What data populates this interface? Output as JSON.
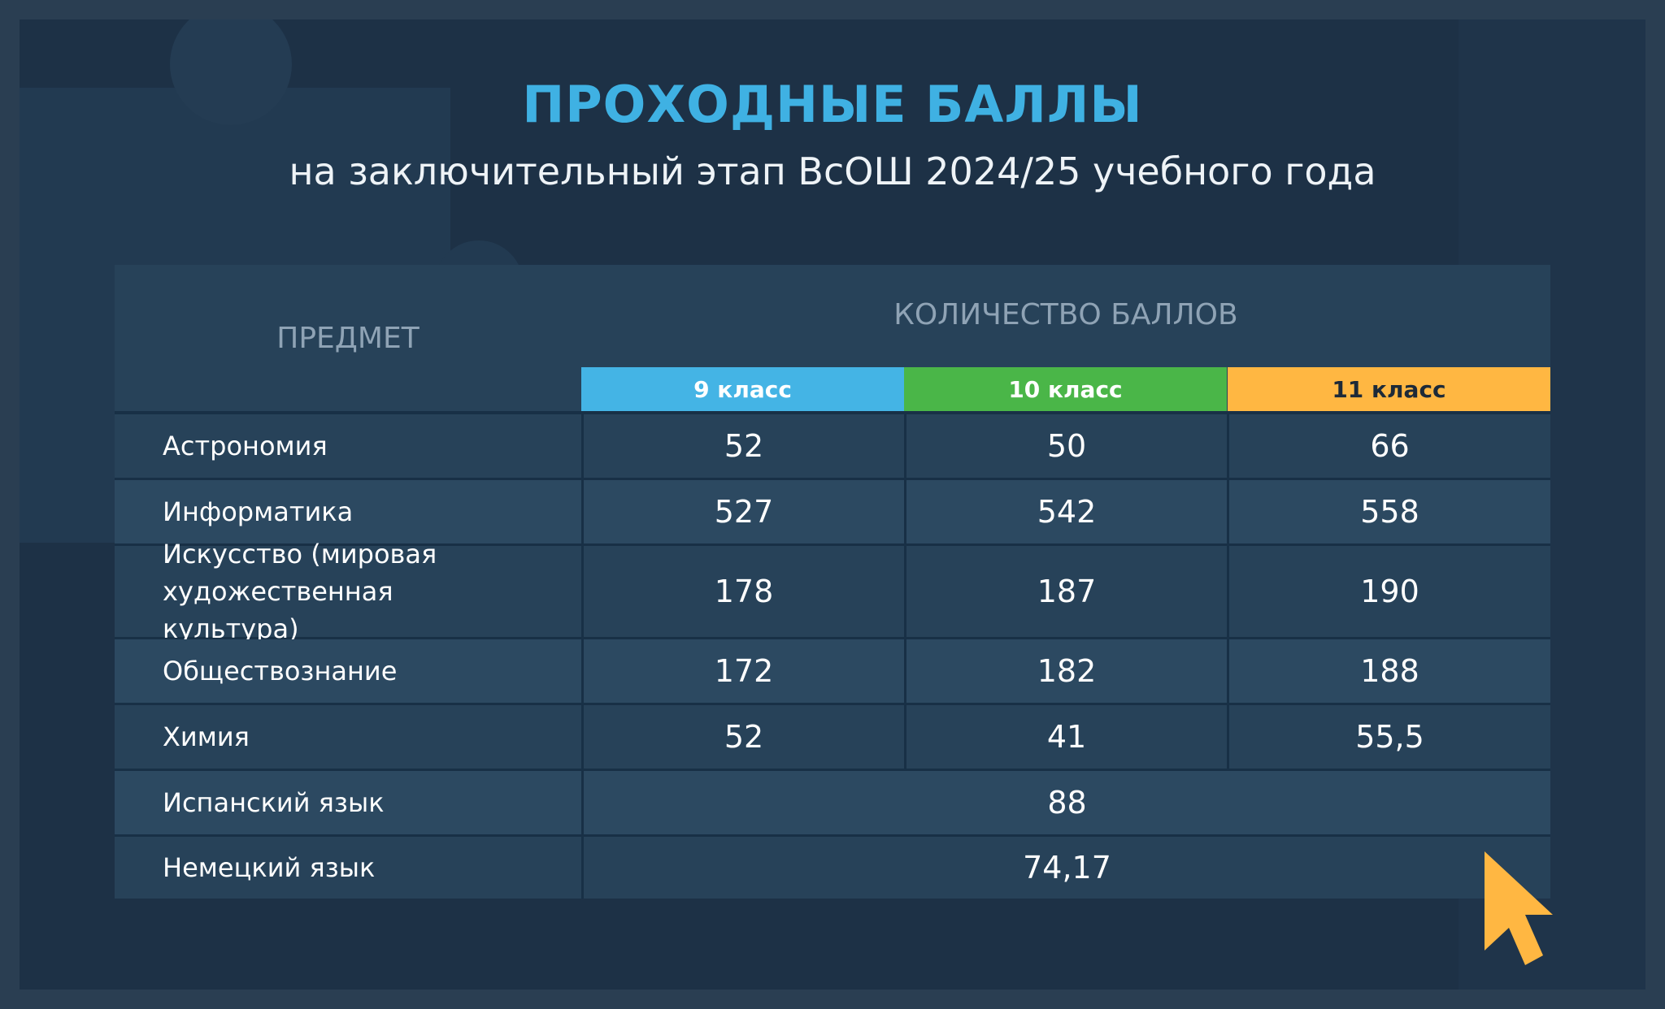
{
  "header": {
    "title": "ПРОХОДНЫЕ БАЛЛЫ",
    "subtitle": "на заключительный этап ВсОШ 2024/25 учебного года"
  },
  "table": {
    "subject_header": "ПРЕДМЕТ",
    "scores_header": "КОЛИЧЕСТВО БАЛЛОВ",
    "grades": [
      "9 класс",
      "10 класс",
      "11 класс"
    ],
    "grade_colors": [
      "#44b4e5",
      "#4ab648",
      "#ffb742"
    ],
    "rows": [
      {
        "subject": "Астрономия",
        "g9": "52",
        "g10": "50",
        "g11": "66"
      },
      {
        "subject": "Информатика",
        "g9": "527",
        "g10": "542",
        "g11": "558"
      },
      {
        "subject": "Искусство (мировая художественная культура)",
        "g9": "178",
        "g10": "187",
        "g11": "190"
      },
      {
        "subject": "Обществознание",
        "g9": "172",
        "g10": "182",
        "g11": "188"
      },
      {
        "subject": "Химия",
        "g9": "52",
        "g10": "41",
        "g11": "55,5"
      },
      {
        "subject": "Испанский язык",
        "all": "88"
      },
      {
        "subject": "Немецкий язык",
        "all": "74,17"
      }
    ]
  },
  "cursor": {
    "icon": "pointer-arrow-icon",
    "color": "#ffb742"
  }
}
